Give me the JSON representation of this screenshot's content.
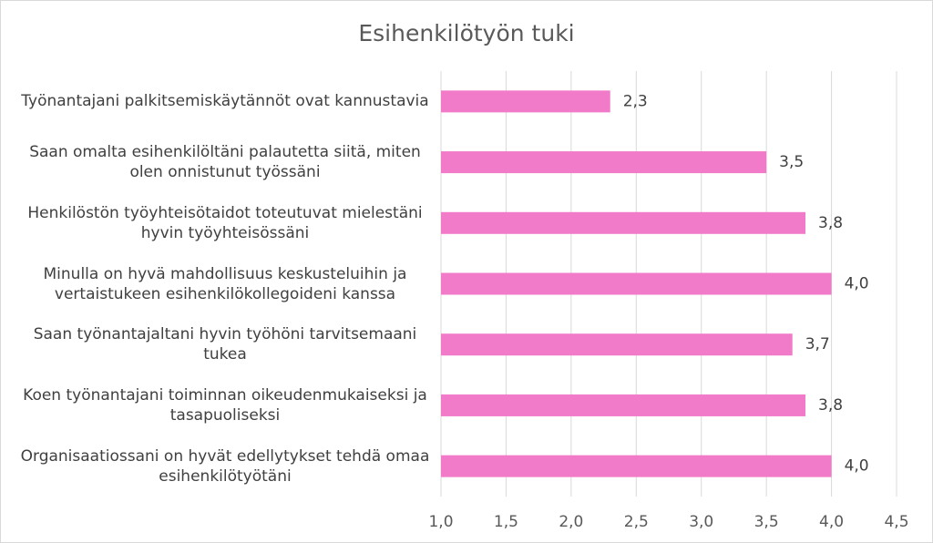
{
  "chart_data": {
    "type": "barh",
    "title": "Esihenkilötyön tuki",
    "categories": [
      "Työnantajani palkitsemiskäytännöt ovat kannustavia",
      "Saan omalta esihenkilöltäni palautetta siitä, miten olen onnistunut työssäni",
      "Henkilöstön työyhteisötaidot toteutuvat mielestäni hyvin työyhteisössäni",
      "Minulla on hyvä mahdollisuus keskusteluihin ja vertaistukeen esihenkilökollegoideni kanssa",
      "Saan työnantajaltani hyvin työhöni tarvitsemaani tukea",
      "Koen työnantajani toiminnan oikeudenmukaiseksi ja tasapuoliseksi",
      "Organisaatiossani on hyvät edellytykset tehdä omaa esihenkilötyötäni"
    ],
    "values": [
      2.3,
      3.5,
      3.8,
      4.0,
      3.7,
      3.8,
      4.0
    ],
    "value_labels": [
      "2,3",
      "3,5",
      "3,8",
      "4,0",
      "3,7",
      "3,8",
      "4,0"
    ],
    "color": "#f17bc9",
    "xlim": [
      1.0,
      4.5
    ],
    "xticks": [
      {
        "value": 1.0,
        "label": "1,0"
      },
      {
        "value": 1.5,
        "label": "1,5"
      },
      {
        "value": 2.0,
        "label": "2,0"
      },
      {
        "value": 2.5,
        "label": "2,5"
      },
      {
        "value": 3.0,
        "label": "3,0"
      },
      {
        "value": 3.5,
        "label": "3,5"
      },
      {
        "value": 4.0,
        "label": "4,0"
      },
      {
        "value": 4.5,
        "label": "4,5"
      }
    ],
    "grid": true
  }
}
